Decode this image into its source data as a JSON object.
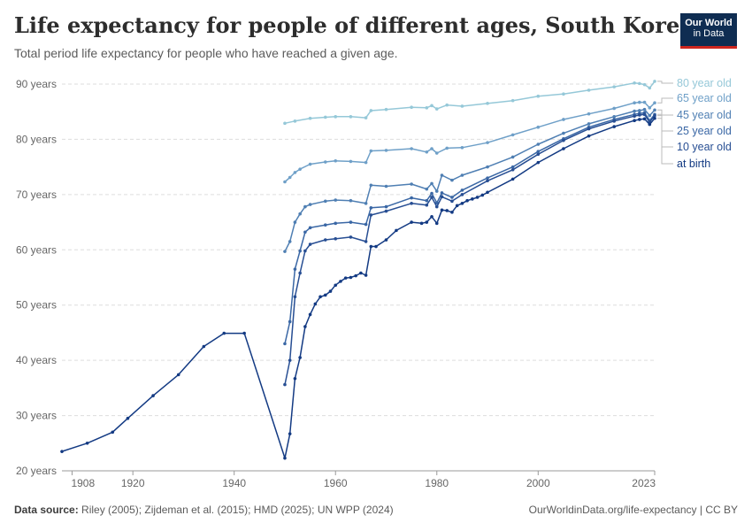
{
  "header": {
    "title": "Life expectancy for people of different ages, South Korea",
    "subtitle": "Total period life expectancy for people who have reached a given age."
  },
  "logo": {
    "line1": "Our World",
    "line2": "in Data",
    "bg": "#0f2d52",
    "accent": "#ce261e"
  },
  "footer": {
    "source_label": "Data source:",
    "source_text": "Riley (2005); Zijdeman et al. (2015); HMD (2025); UN WPP (2024)",
    "right_text": "OurWorldinData.org/life-expectancy | CC BY"
  },
  "chart_data": {
    "type": "line",
    "title": "Life expectancy for people of different ages, South Korea",
    "subtitle": "Total period life expectancy for people who have reached a given age.",
    "xlabel": "",
    "ylabel": "",
    "xlim": [
      1906,
      2023
    ],
    "ylim": [
      20,
      90
    ],
    "x_ticks": [
      1908,
      1920,
      1940,
      1960,
      1980,
      2000,
      2023
    ],
    "y_ticks": [
      20,
      30,
      40,
      50,
      60,
      70,
      80,
      90
    ],
    "y_tick_suffix": " years",
    "grid": "horizontal dashed",
    "legend": "right, labels at line ends",
    "series": [
      {
        "name": "80 year old",
        "color": "#95c8d8",
        "x": [
          1950,
          1952,
          1955,
          1958,
          1960,
          1963,
          1966,
          1967,
          1970,
          1975,
          1978,
          1979,
          1980,
          1982,
          1985,
          1990,
          1995,
          2000,
          2005,
          2010,
          2015,
          2019,
          2020,
          2021,
          2022,
          2023
        ],
        "y": [
          82.9,
          83.3,
          83.8,
          84.0,
          84.1,
          84.1,
          83.9,
          85.2,
          85.4,
          85.8,
          85.7,
          86.1,
          85.5,
          86.2,
          86.0,
          86.5,
          87.0,
          87.8,
          88.2,
          88.9,
          89.5,
          90.2,
          90.1,
          89.9,
          89.3,
          90.5
        ]
      },
      {
        "name": "65 year old",
        "color": "#6fa0c8",
        "x": [
          1950,
          1951,
          1952,
          1953,
          1955,
          1958,
          1960,
          1963,
          1966,
          1967,
          1970,
          1975,
          1978,
          1979,
          1980,
          1982,
          1985,
          1990,
          1995,
          2000,
          2005,
          2010,
          2015,
          2019,
          2020,
          2021,
          2022,
          2023
        ],
        "y": [
          72.3,
          73.1,
          74.0,
          74.6,
          75.5,
          75.9,
          76.1,
          76.0,
          75.8,
          77.9,
          78.0,
          78.3,
          77.7,
          78.3,
          77.5,
          78.4,
          78.5,
          79.4,
          80.8,
          82.2,
          83.6,
          84.6,
          85.6,
          86.6,
          86.7,
          86.7,
          85.7,
          86.6
        ]
      },
      {
        "name": "45 year old",
        "color": "#4f7fb3",
        "x": [
          1950,
          1951,
          1952,
          1953,
          1954,
          1955,
          1958,
          1960,
          1963,
          1966,
          1967,
          1970,
          1975,
          1978,
          1979,
          1980,
          1981,
          1983,
          1985,
          1990,
          1995,
          2000,
          2005,
          2010,
          2015,
          2019,
          2020,
          2021,
          2022,
          2023
        ],
        "y": [
          59.7,
          61.5,
          65.0,
          66.5,
          67.8,
          68.2,
          68.8,
          69.0,
          68.9,
          68.4,
          71.7,
          71.5,
          71.9,
          71.0,
          72.0,
          70.6,
          73.5,
          72.6,
          73.5,
          75.0,
          76.8,
          79.1,
          81.1,
          82.8,
          84.1,
          85.1,
          85.2,
          85.4,
          84.3,
          85.3
        ]
      },
      {
        "name": "25 year old",
        "color": "#3a67a5",
        "x": [
          1950,
          1951,
          1952,
          1953,
          1954,
          1955,
          1958,
          1960,
          1963,
          1966,
          1967,
          1970,
          1975,
          1978,
          1979,
          1980,
          1981,
          1983,
          1985,
          1990,
          1995,
          2000,
          2005,
          2010,
          2015,
          2019,
          2020,
          2021,
          2022,
          2023
        ],
        "y": [
          43.0,
          47.0,
          56.5,
          59.8,
          63.2,
          64.0,
          64.5,
          64.8,
          65.0,
          64.6,
          67.6,
          67.8,
          69.4,
          68.9,
          70.2,
          68.5,
          70.3,
          69.5,
          70.8,
          73.0,
          75.0,
          77.8,
          80.1,
          82.2,
          83.6,
          84.5,
          84.7,
          84.8,
          83.4,
          84.5
        ]
      },
      {
        "name": "10 year old",
        "color": "#274e93",
        "x": [
          1950,
          1951,
          1952,
          1953,
          1954,
          1955,
          1958,
          1960,
          1963,
          1966,
          1967,
          1970,
          1975,
          1978,
          1979,
          1980,
          1981,
          1983,
          1985,
          1990,
          1995,
          2000,
          2005,
          2010,
          2015,
          2019,
          2020,
          2021,
          2022,
          2023
        ],
        "y": [
          35.6,
          40.0,
          51.5,
          55.8,
          59.8,
          61.0,
          61.8,
          62.0,
          62.3,
          61.5,
          66.3,
          67.0,
          68.4,
          68.1,
          69.5,
          67.8,
          69.6,
          68.8,
          70.0,
          72.5,
          74.5,
          77.3,
          79.8,
          81.9,
          83.3,
          84.2,
          84.4,
          84.5,
          83.1,
          84.3
        ]
      },
      {
        "name": "at birth",
        "color": "#133a83",
        "x": [
          1906,
          1911,
          1916,
          1919,
          1924,
          1929,
          1934,
          1938,
          1942,
          1950,
          1951,
          1952,
          1953,
          1954,
          1955,
          1956,
          1957,
          1958,
          1959,
          1960,
          1961,
          1962,
          1963,
          1964,
          1965,
          1966,
          1967,
          1968,
          1970,
          1972,
          1975,
          1977,
          1978,
          1979,
          1980,
          1981,
          1982,
          1983,
          1984,
          1985,
          1986,
          1987,
          1988,
          1989,
          1990,
          1995,
          2000,
          2005,
          2010,
          2015,
          2019,
          2020,
          2021,
          2022,
          2023
        ],
        "y": [
          23.5,
          25.0,
          27.0,
          29.5,
          33.6,
          37.4,
          42.5,
          44.9,
          44.9,
          22.3,
          26.7,
          36.7,
          40.5,
          46.1,
          48.3,
          50.2,
          51.5,
          51.8,
          52.5,
          53.6,
          54.3,
          54.9,
          55.0,
          55.3,
          55.8,
          55.4,
          60.6,
          60.6,
          61.8,
          63.5,
          65.0,
          64.8,
          65.0,
          66.0,
          64.8,
          67.2,
          67.1,
          66.8,
          68.0,
          68.4,
          68.9,
          69.2,
          69.5,
          69.9,
          70.4,
          72.8,
          75.8,
          78.3,
          80.6,
          82.3,
          83.4,
          83.6,
          83.7,
          82.7,
          83.8
        ]
      }
    ]
  }
}
